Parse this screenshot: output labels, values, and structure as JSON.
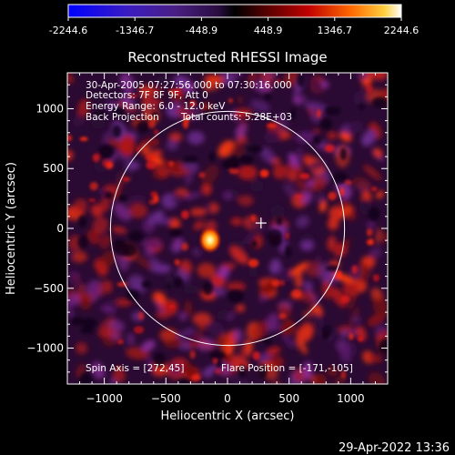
{
  "colorbar": {
    "ticks": [
      "-2244.6",
      "-1346.7",
      "-448.9",
      "448.9",
      "1346.7",
      "2244.6"
    ],
    "tick_values": [
      -2244.6,
      -1346.7,
      -448.9,
      448.9,
      1346.7,
      2244.6
    ]
  },
  "chart_data": {
    "type": "heatmap",
    "title": "Reconstructed RHESSI Image",
    "xlabel": "Heliocentric X (arcsec)",
    "ylabel": "Heliocentric Y (arcsec)",
    "xlim": [
      -1300,
      1300
    ],
    "ylim": [
      -1300,
      1300
    ],
    "xticks": [
      -1000,
      -500,
      0,
      500,
      1000
    ],
    "yticks": [
      -1000,
      -500,
      0,
      500,
      1000
    ],
    "xtick_labels": [
      "−1000",
      "−500",
      "0",
      "500",
      "1000"
    ],
    "ytick_labels": [
      "−1000",
      "−500",
      "0",
      "500",
      "1000"
    ],
    "colorscale_range": [
      -2244.6,
      2244.6
    ],
    "solar_disk_radius": 950,
    "bright_source": {
      "x": -171,
      "y": -105
    },
    "cross_marker": {
      "x": 272,
      "y": 45
    },
    "annotations": [
      "30-Apr-2005 07:27:56.000 to 07:30:16.000",
      "Detectors: 7F 8F 9F, Att 0",
      "Energy Range: 6.0 - 12.0 keV",
      "Back Projection",
      "Total counts: 5.28E+03",
      "Spin Axis = [272,45]",
      "Flare Position = [-171,-105]"
    ]
  },
  "timestamp": "29-Apr-2022 13:36"
}
